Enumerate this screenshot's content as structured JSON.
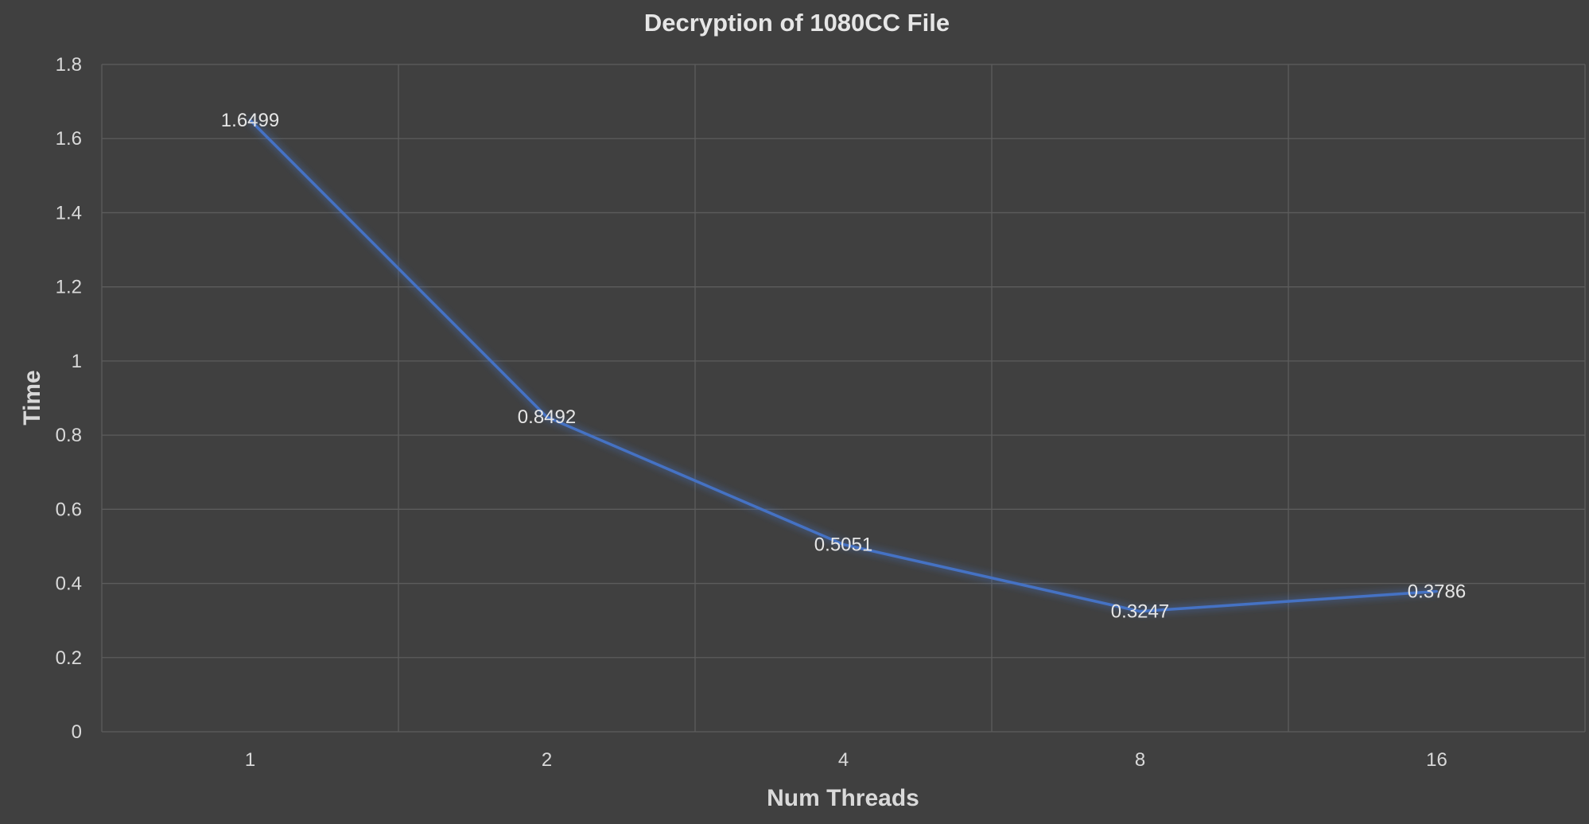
{
  "chart_data": {
    "type": "line",
    "title": "Decryption of 1080CC File",
    "xlabel": "Num Threads",
    "ylabel": "Time",
    "categories": [
      "1",
      "2",
      "4",
      "8",
      "16"
    ],
    "series": [
      {
        "values": [
          1.6499,
          0.8492,
          0.5051,
          0.3247,
          0.3786
        ],
        "data_labels": [
          "1.6499",
          "0.8492",
          "0.5051",
          "0.3247",
          "0.3786"
        ],
        "color": "#4472c4"
      }
    ],
    "ylim": [
      0,
      1.8
    ],
    "yticks": [
      0,
      0.2,
      0.4,
      0.6,
      0.8,
      1,
      1.2,
      1.4,
      1.6,
      1.8
    ],
    "ytick_labels": [
      "0",
      "0.2",
      "0.4",
      "0.6",
      "0.8",
      "1",
      "1.2",
      "1.4",
      "1.6",
      "1.8"
    ],
    "grid": true,
    "legend": "none",
    "background_color": "#404040",
    "grid_color": "#5c5c5c",
    "text_color": "#d9d9d9"
  }
}
